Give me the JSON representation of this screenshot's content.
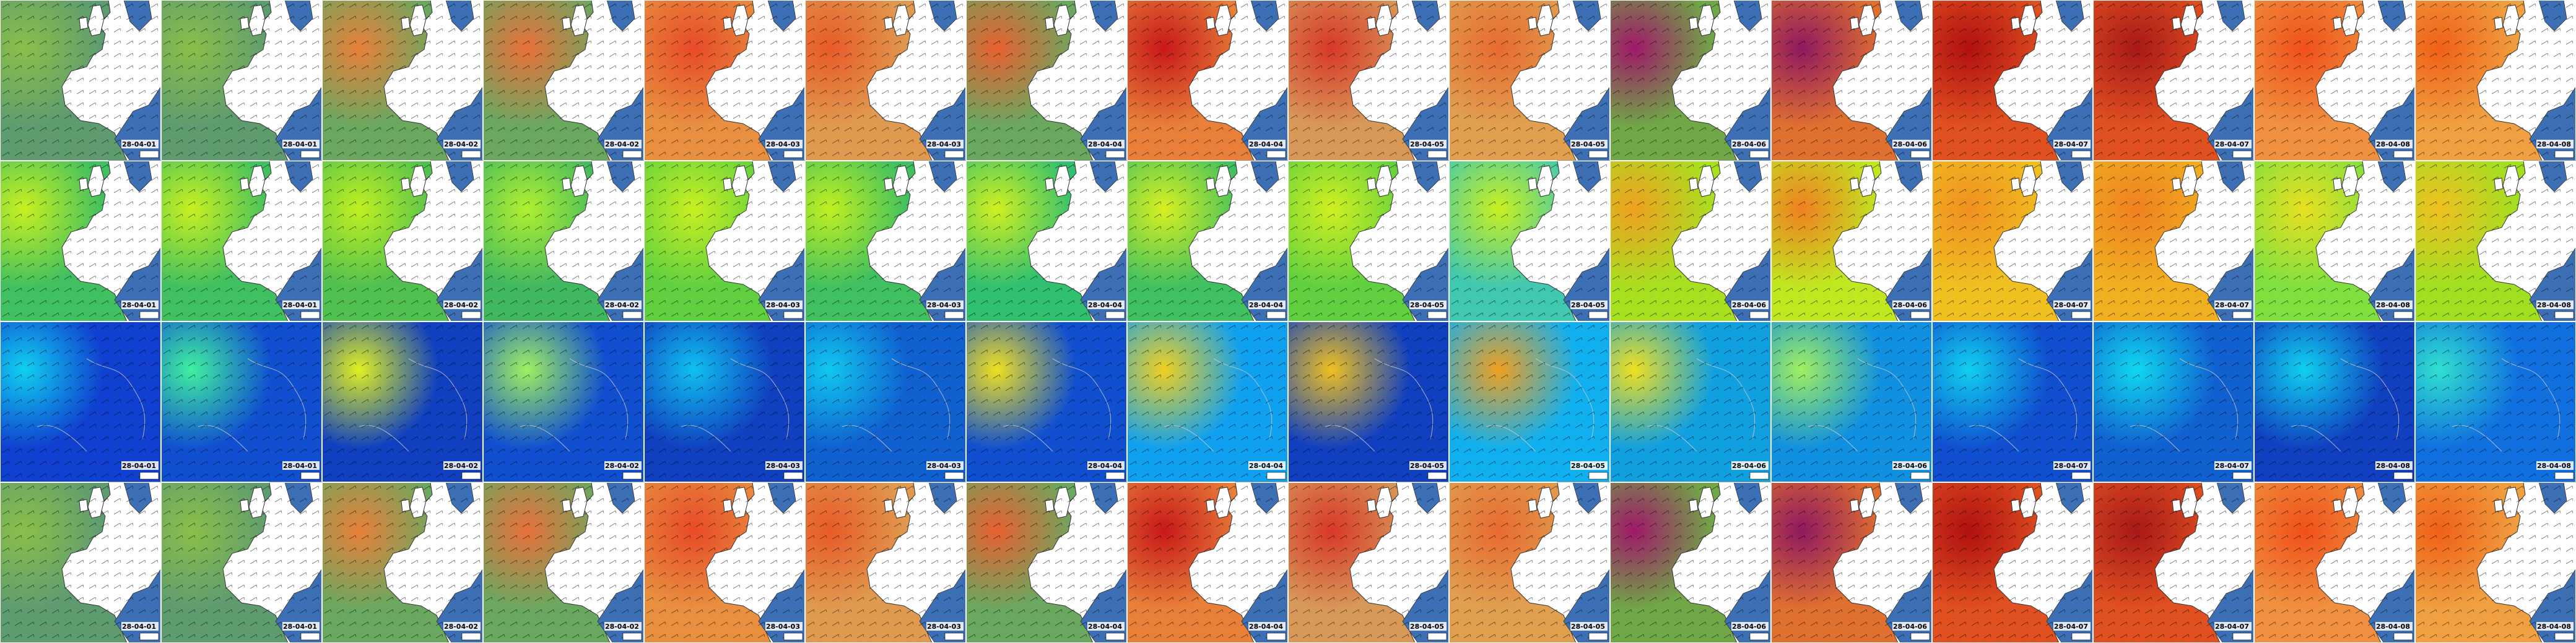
{
  "rows": [
    {
      "dates": [
        "28-04-01",
        "28-04-01",
        "28-04-02",
        "28-04-02",
        "28-04-03",
        "28-04-03",
        "28-04-04",
        "28-04-04",
        "28-04-05",
        "28-04-05",
        "28-04-06",
        "28-04-06",
        "28-04-07",
        "28-04-07",
        "28-04-08",
        "28-04-08"
      ]
    },
    {
      "dates": [
        "28-04-01",
        "28-04-01",
        "28-04-02",
        "28-04-02",
        "28-04-03",
        "28-04-03",
        "28-04-04",
        "28-04-04",
        "28-04-05",
        "28-04-05",
        "28-04-06",
        "28-04-06",
        "28-04-07",
        "28-04-07",
        "28-04-08",
        "28-04-08"
      ]
    },
    {
      "dates": [
        "28-04-01",
        "28-04-01",
        "28-04-02",
        "28-04-02",
        "28-04-03",
        "28-04-03",
        "28-04-04",
        "28-04-04",
        "28-04-05",
        "28-04-05",
        "28-04-06",
        "28-04-06",
        "28-04-07",
        "28-04-07",
        "28-04-08",
        "28-04-08"
      ]
    },
    {
      "dates": [
        "28-04-01",
        "28-04-01",
        "28-04-02",
        "28-04-02",
        "28-04-03",
        "28-04-03",
        "28-04-04",
        "28-04-04",
        "28-04-05",
        "28-04-05",
        "28-04-06",
        "28-04-06",
        "28-04-07",
        "28-04-07",
        "28-04-08",
        "28-04-08"
      ]
    }
  ]
}
